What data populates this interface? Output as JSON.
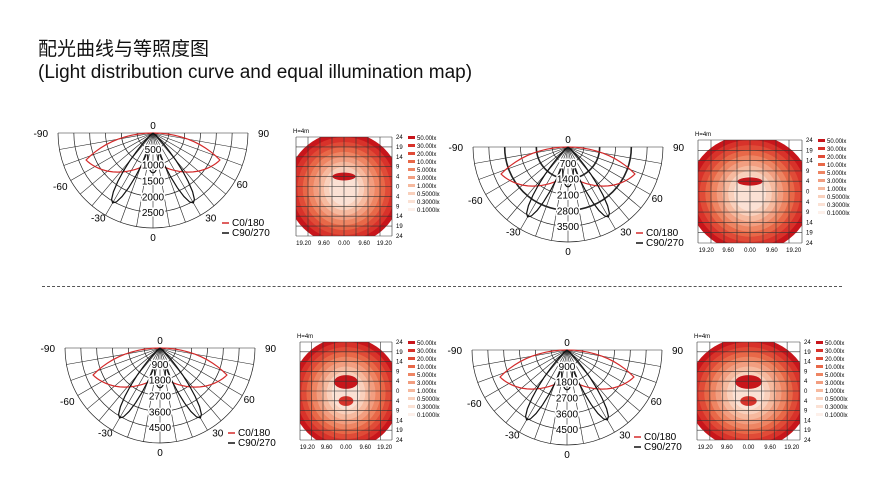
{
  "title_cn": "配光曲线与等照度图",
  "title_en": "(Light distribution curve and equal illumination map)",
  "polar_common": {
    "angle_labels": {
      "left90": "-90",
      "right90": "90",
      "left60": "-60",
      "right60": "60",
      "left30": "-30",
      "right30": "30",
      "top0": "0",
      "bottom0": "0"
    },
    "legend": [
      {
        "label": "C0/180",
        "color": "#d42a2a"
      },
      {
        "label": "C90/270",
        "color": "#111111"
      }
    ]
  },
  "map_common": {
    "height_label": "H=4m",
    "x_labels": [
      "19.20",
      "9.60",
      "0.00",
      "9.60",
      "19.20"
    ],
    "y_labels": [
      "24",
      "19",
      "14",
      "9",
      "4",
      "0",
      "4",
      "9",
      "14",
      "19",
      "24"
    ],
    "legend": [
      {
        "label": "50.00lx",
        "color": "#c8151b"
      },
      {
        "label": "30.00lx",
        "color": "#d8322a"
      },
      {
        "label": "20.00lx",
        "color": "#e04b37"
      },
      {
        "label": "10.00lx",
        "color": "#e86848"
      },
      {
        "label": "5.000lx",
        "color": "#ee8563"
      },
      {
        "label": "3.000lx",
        "color": "#f29e80"
      },
      {
        "label": "1.000lx",
        "color": "#f6b99e"
      },
      {
        "label": "0.5000lx",
        "color": "#f9d0bc"
      },
      {
        "label": "0.3000lx",
        "color": "#fbe1d4"
      },
      {
        "label": "0.1000lx",
        "color": "#fdf0ea"
      }
    ]
  },
  "polars": [
    {
      "ring_labels": [
        "500",
        "1000",
        "1500",
        "2000",
        "2500"
      ]
    },
    {
      "ring_labels": [
        "700",
        "1400",
        "2100",
        "2800",
        "3500"
      ]
    },
    {
      "ring_labels": [
        "900",
        "1800",
        "2700",
        "3600",
        "4500"
      ]
    },
    {
      "ring_labels": [
        "900",
        "1800",
        "2700",
        "3600",
        "4500"
      ]
    }
  ]
}
